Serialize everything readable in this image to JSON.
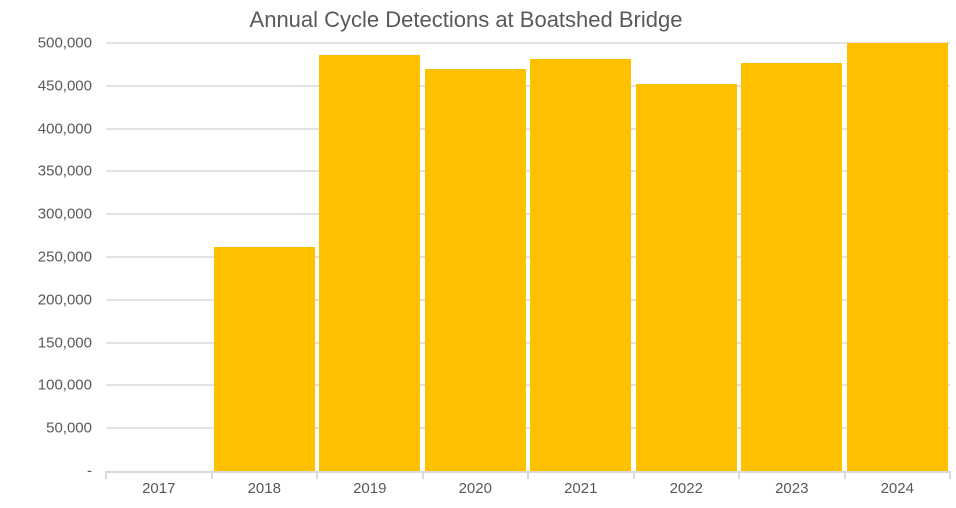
{
  "chart_data": {
    "type": "bar",
    "title": "Annual Cycle Detections at Boatshed Bridge",
    "xlabel": "",
    "ylabel": "",
    "categories": [
      "2017",
      "2018",
      "2019",
      "2020",
      "2021",
      "2022",
      "2023",
      "2024"
    ],
    "values": [
      0,
      262000,
      486000,
      470000,
      481000,
      452000,
      477000,
      500000
    ],
    "ylim": [
      0,
      500000
    ],
    "ytick_interval": 50000,
    "ytick_labels": [
      "-",
      "50,000",
      "100,000",
      "150,000",
      "200,000",
      "250,000",
      "300,000",
      "350,000",
      "400,000",
      "450,000",
      "500,000"
    ],
    "grid": true,
    "legend": "none",
    "colors": {
      "bar": "#FFC000",
      "text": "#595959",
      "gridline": "#E2E2E2",
      "axis": "#D9D9D9",
      "background": "#FFFFFF"
    }
  }
}
